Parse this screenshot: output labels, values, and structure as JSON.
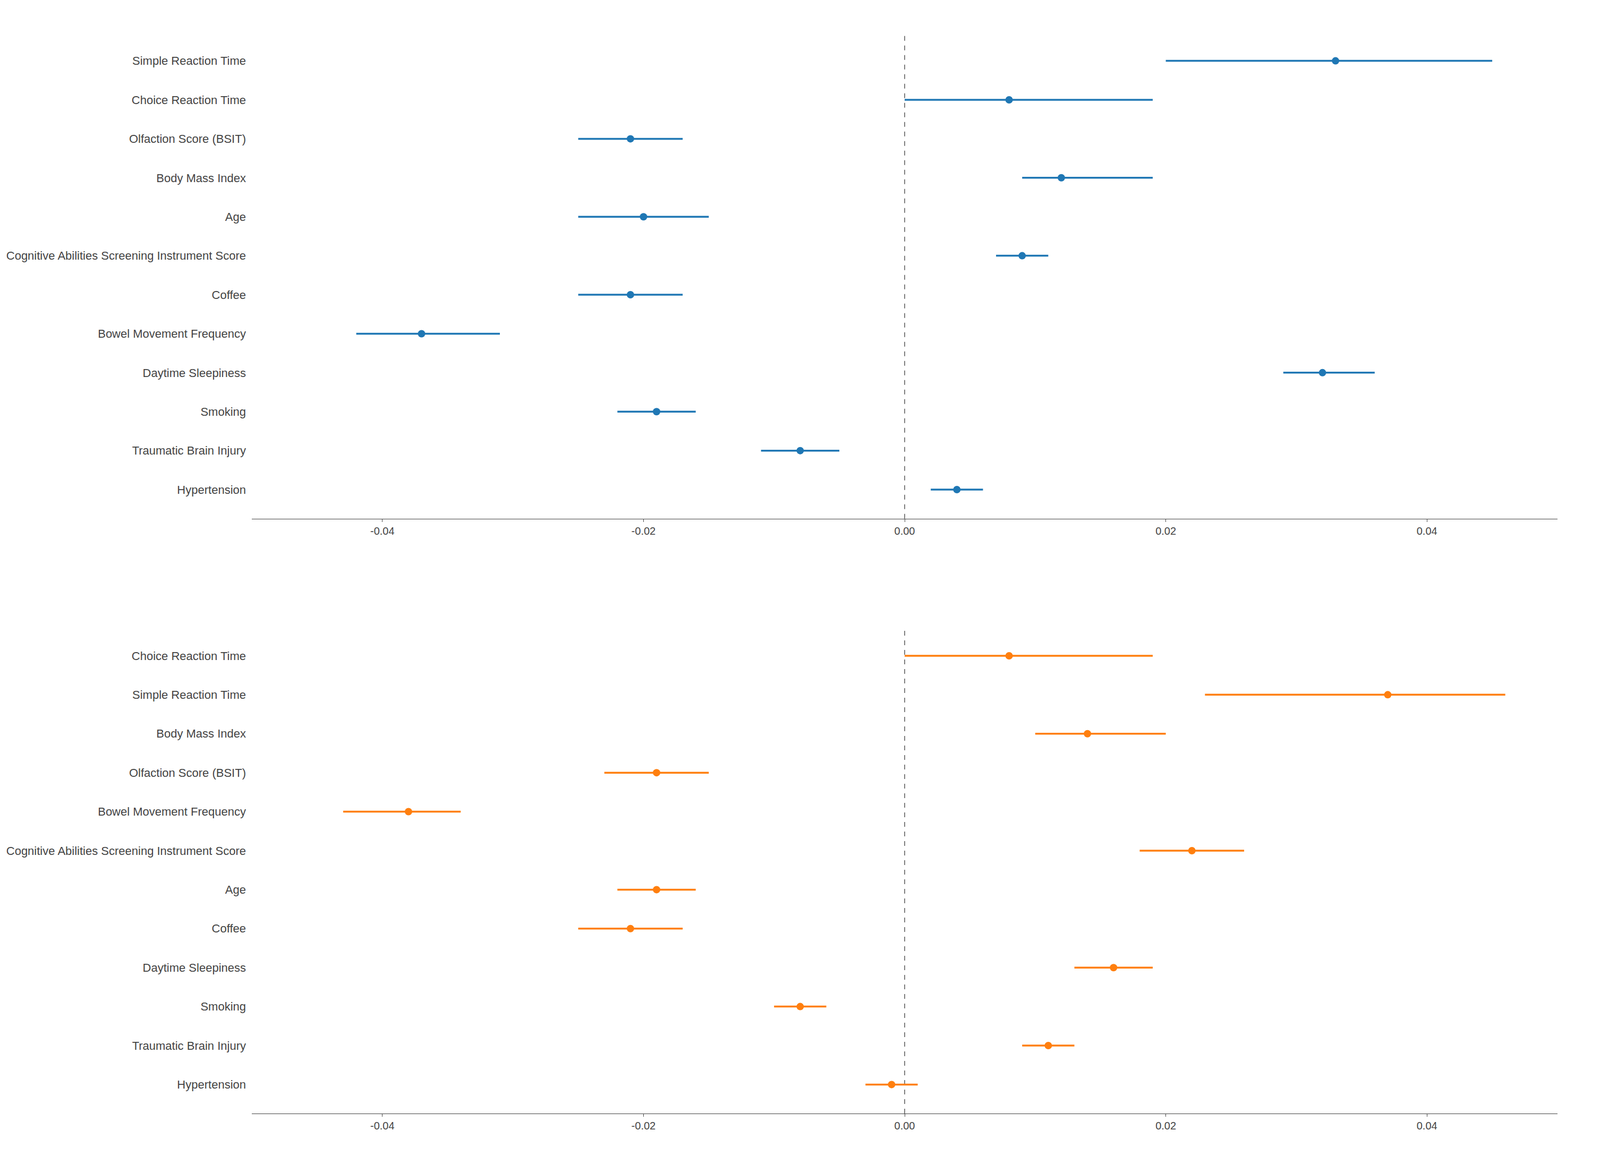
{
  "chart_data": [
    {
      "type": "forest",
      "categories": [
        "Simple Reaction Time",
        "Choice Reaction Time",
        "Olfaction Score (BSIT)",
        "Body Mass Index",
        "Age",
        "Cognitive Abilities Screening Instrument Score",
        "Coffee",
        "Bowel Movement Frequency",
        "Daytime Sleepiness",
        "Smoking",
        "Traumatic Brain Injury",
        "Hypertension"
      ],
      "values": [
        0.033,
        0.008,
        -0.021,
        0.012,
        -0.02,
        0.009,
        -0.021,
        -0.037,
        0.032,
        -0.019,
        -0.008,
        0.004
      ],
      "error_low": [
        0.013,
        0.008,
        0.004,
        0.003,
        0.005,
        0.002,
        0.004,
        0.005,
        0.003,
        0.003,
        0.003,
        0.002
      ],
      "error_high": [
        0.012,
        0.011,
        0.004,
        0.007,
        0.005,
        0.002,
        0.004,
        0.006,
        0.004,
        0.003,
        0.003,
        0.002
      ],
      "xlim": [
        -0.05,
        0.05
      ],
      "xticks": [
        -0.04,
        -0.02,
        {
          "value": 0,
          "label": "0.00"
        },
        0.02,
        0.04
      ],
      "vline": 0,
      "grid": false
    },
    {
      "type": "forest",
      "categories": [
        "Choice Reaction Time",
        "Simple Reaction Time",
        "Body Mass Index",
        "Olfaction Score (BSIT)",
        "Bowel Movement Frequency",
        "Cognitive Abilities Screening Instrument Score",
        "Age",
        "Coffee",
        "Daytime Sleepiness",
        "Smoking",
        "Traumatic Brain Injury",
        "Hypertension"
      ],
      "values": [
        0.008,
        0.037,
        0.014,
        -0.019,
        -0.038,
        0.022,
        -0.019,
        -0.021,
        0.016,
        -0.008,
        0.011,
        -0.001
      ],
      "error_low": [
        0.008,
        0.014,
        0.004,
        0.004,
        0.005,
        0.004,
        0.003,
        0.004,
        0.003,
        0.002,
        0.002,
        0.002
      ],
      "error_high": [
        0.011,
        0.009,
        0.006,
        0.004,
        0.004,
        0.004,
        0.003,
        0.004,
        0.003,
        0.002,
        0.002,
        0.002
      ],
      "xlim": [
        -0.05,
        0.05
      ],
      "xticks": [
        -0.04,
        -0.02,
        {
          "value": 0,
          "label": "0.00"
        },
        0.02,
        0.04
      ],
      "vline": 0,
      "grid": false
    }
  ]
}
